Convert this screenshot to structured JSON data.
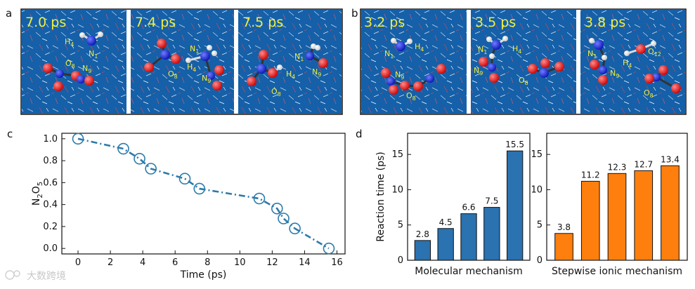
{
  "panel_labels": {
    "a": "a",
    "b": "b",
    "c": "c",
    "d": "d"
  },
  "snapshots_a": [
    {
      "time": "7.0 ps",
      "labels": [
        "H4",
        "N1",
        "O8",
        "N9"
      ]
    },
    {
      "time": "7.4 ps",
      "labels": [
        "N1",
        "H4",
        "O8",
        "N9"
      ]
    },
    {
      "time": "7.5 ps",
      "labels": [
        "N1",
        "N9",
        "H4",
        "O8"
      ]
    }
  ],
  "snapshots_b": [
    {
      "time": "3.2 ps",
      "labels": [
        "N1",
        "H4",
        "N9",
        "O8"
      ]
    },
    {
      "time": "3.5 ps",
      "labels": [
        "N1",
        "H4",
        "N9",
        "O8"
      ]
    },
    {
      "time": "3.8 ps",
      "labels": [
        "N1",
        "H4",
        "O12",
        "N9",
        "O8"
      ]
    }
  ],
  "watermark": "大数跨境",
  "colors": {
    "line": "#2d7bab",
    "molecular": "#2a72b0",
    "ionic": "#ff7f0e",
    "water": "#1560a8",
    "atom_label": "#f1ee3c"
  },
  "chart_data": [
    {
      "type": "line",
      "panel": "c",
      "title": "",
      "xlabel": "Time (ps)",
      "ylabel": "N2O5",
      "x": [
        0,
        2.8,
        3.8,
        4.5,
        6.6,
        7.5,
        11.2,
        12.3,
        12.7,
        13.4,
        15.5
      ],
      "y": [
        1.0,
        0.909,
        0.818,
        0.727,
        0.636,
        0.545,
        0.455,
        0.364,
        0.273,
        0.182,
        0.0
      ],
      "xlim": [
        -1,
        16.5
      ],
      "ylim": [
        -0.05,
        1.05
      ],
      "xticks": [
        "0",
        "2",
        "4",
        "6",
        "8",
        "10",
        "12",
        "14",
        "16"
      ],
      "yticks": [
        "0.0",
        "0.2",
        "0.4",
        "0.6",
        "0.8",
        "1.0"
      ]
    },
    {
      "type": "bar",
      "panel": "d",
      "xlabel": "Molecular mechanism",
      "ylabel": "Reaction time (ps)",
      "values": [
        2.8,
        4.5,
        6.6,
        7.5,
        15.5
      ],
      "value_labels": [
        "2.8",
        "4.5",
        "6.6",
        "7.5",
        "15.5"
      ],
      "ylim": [
        0,
        18
      ],
      "yticks": [
        "0",
        "5",
        "10",
        "15"
      ]
    },
    {
      "type": "bar",
      "panel": "d",
      "xlabel": "Stepwise ionic mechanism",
      "ylabel": "",
      "values": [
        3.8,
        11.2,
        12.3,
        12.7,
        13.4
      ],
      "value_labels": [
        "3.8",
        "11.2",
        "12.3",
        "12.7",
        "13.4"
      ],
      "ylim": [
        0,
        18
      ],
      "yticks": [
        "0",
        "5",
        "10",
        "15"
      ]
    }
  ]
}
